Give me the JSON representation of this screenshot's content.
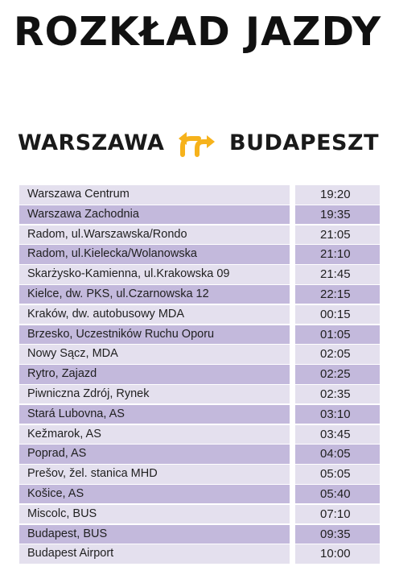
{
  "title": "ROZKŁAD JAZDY",
  "route": {
    "from": "WARSZAWA",
    "to": "BUDAPESZT",
    "icon": "swap-arrows-icon",
    "icon_color": "#f6b21b"
  },
  "colors": {
    "row_light": "#e4e0ee",
    "row_dark": "#c3b9dc"
  },
  "stops": [
    {
      "name": "Warszawa Centrum",
      "time": "19:20"
    },
    {
      "name": "Warszawa Zachodnia",
      "time": "19:35"
    },
    {
      "name": "Radom, ul.Warszawska/Rondo",
      "time": "21:05"
    },
    {
      "name": "Radom, ul.Kielecka/Wolanowska",
      "time": "21:10"
    },
    {
      "name": "Skarżysko-Kamienna, ul.Krakowska 09",
      "time": "21:45"
    },
    {
      "name": "Kielce, dw. PKS, ul.Czarnowska 12",
      "time": "22:15"
    },
    {
      "name": "Kraków, dw. autobusowy MDA",
      "time": "00:15"
    },
    {
      "name": "Brzesko, Uczestników Ruchu Oporu",
      "time": "01:05"
    },
    {
      "name": "Nowy Sącz, MDA",
      "time": "02:05"
    },
    {
      "name": "Rytro, Zajazd",
      "time": "02:25"
    },
    {
      "name": "Piwniczna Zdrój, Rynek",
      "time": "02:35"
    },
    {
      "name": "Stará Lubovna, AS",
      "time": "03:10"
    },
    {
      "name": "Kežmarok, AS",
      "time": "03:45"
    },
    {
      "name": "Poprad, AS",
      "time": "04:05"
    },
    {
      "name": "Prešov, žel. stanica MHD",
      "time": "05:05"
    },
    {
      "name": "Košice, AS",
      "time": "05:40"
    },
    {
      "name": "Miscolc, BUS",
      "time": "07:10"
    },
    {
      "name": "Budapest, BUS",
      "time": "09:35"
    },
    {
      "name": "Budapest Airport",
      "time": "10:00"
    }
  ]
}
